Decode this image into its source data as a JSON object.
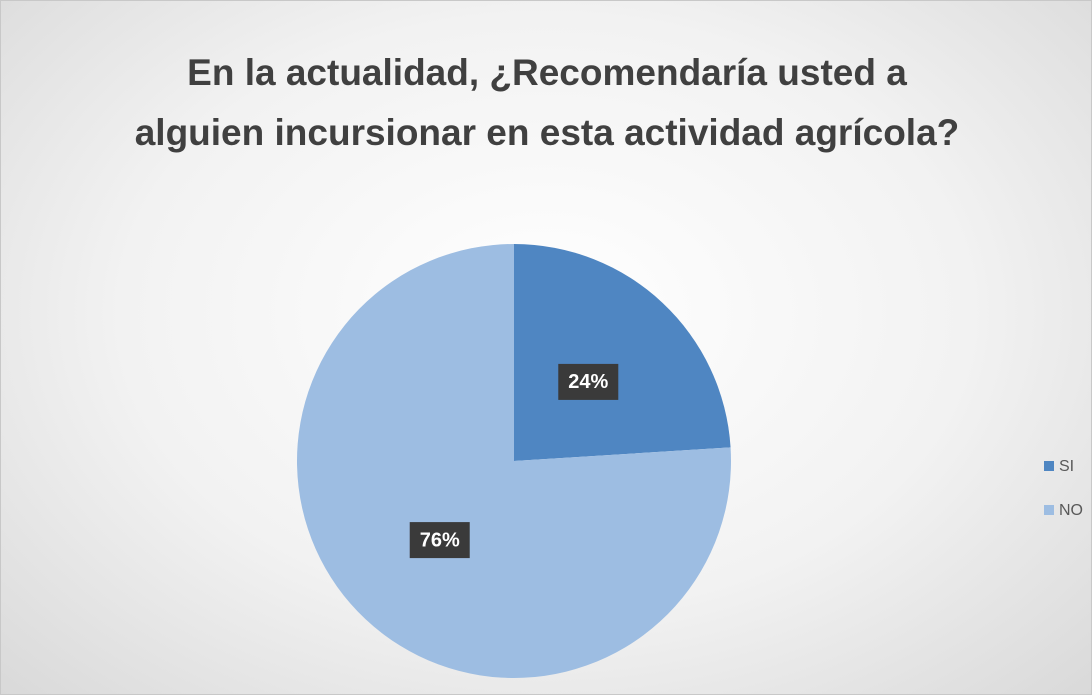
{
  "chart_data": {
    "type": "pie",
    "title": "En la actualidad, ¿Recomendaría usted a alguien incursionar en esta actividad agrícola?",
    "categories": [
      "SI",
      "NO"
    ],
    "values": [
      24,
      76
    ],
    "value_labels": [
      "24%",
      "76%"
    ],
    "colors": [
      "#4f86c2",
      "#9dbde2"
    ],
    "legend": "right"
  }
}
